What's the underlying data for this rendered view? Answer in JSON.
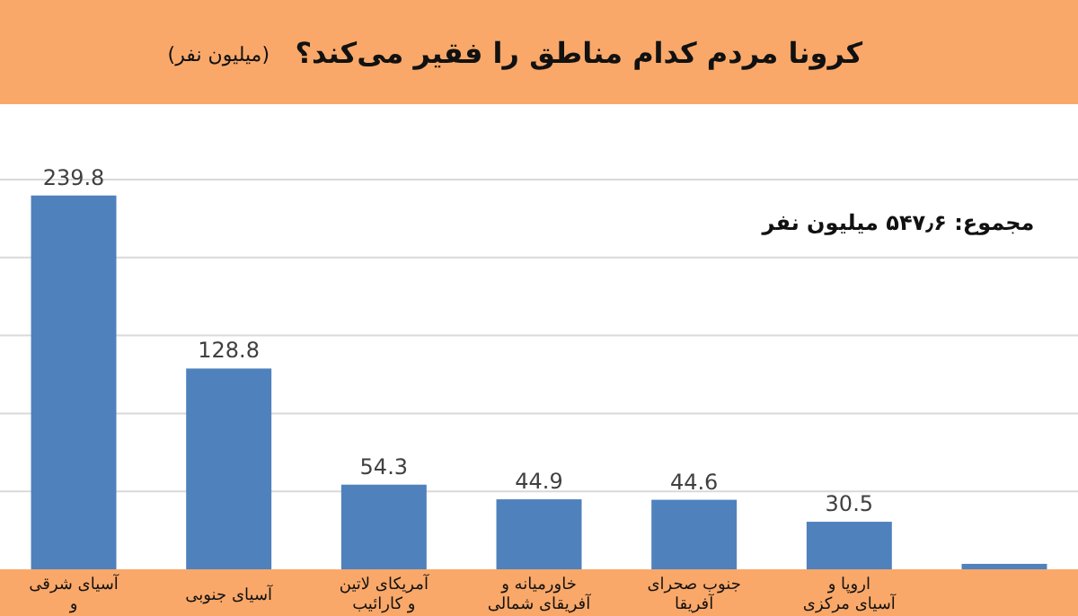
{
  "chart_data": {
    "type": "bar",
    "title": "کرونا مردم کدام مناطق را فقیر می‌کند؟",
    "subtitle": "(میلیون نفر)",
    "categories": [
      "آسیای شرقی و",
      "آسیای جنوبی",
      "آمریکای لاتین و کارائیب",
      "خاورمیانه و آفریقای شمالی",
      "جنوب صحرای آفریقا",
      "اروپا و آسیای مرکزی",
      null
    ],
    "values": [
      239.8,
      128.8,
      54.3,
      44.9,
      44.6,
      30.5,
      3.5
    ],
    "value_labels": [
      "239.8",
      "128.8",
      "54.3",
      "44.9",
      "44.6",
      "30.5",
      null
    ],
    "color": "#4f81bd",
    "ylim": [
      0,
      250
    ],
    "yticks": [
      {
        "value": 50,
        "label": null
      },
      {
        "value": 100,
        "label": null
      },
      {
        "value": 150,
        "label": null
      },
      {
        "value": 200,
        "label": null
      },
      {
        "value": 250,
        "label": null
      }
    ],
    "tick_labels": "x",
    "grid": "y",
    "annotations": [
      "مجموع: ۵۴۷٫۶ میلیون نفر"
    ]
  }
}
